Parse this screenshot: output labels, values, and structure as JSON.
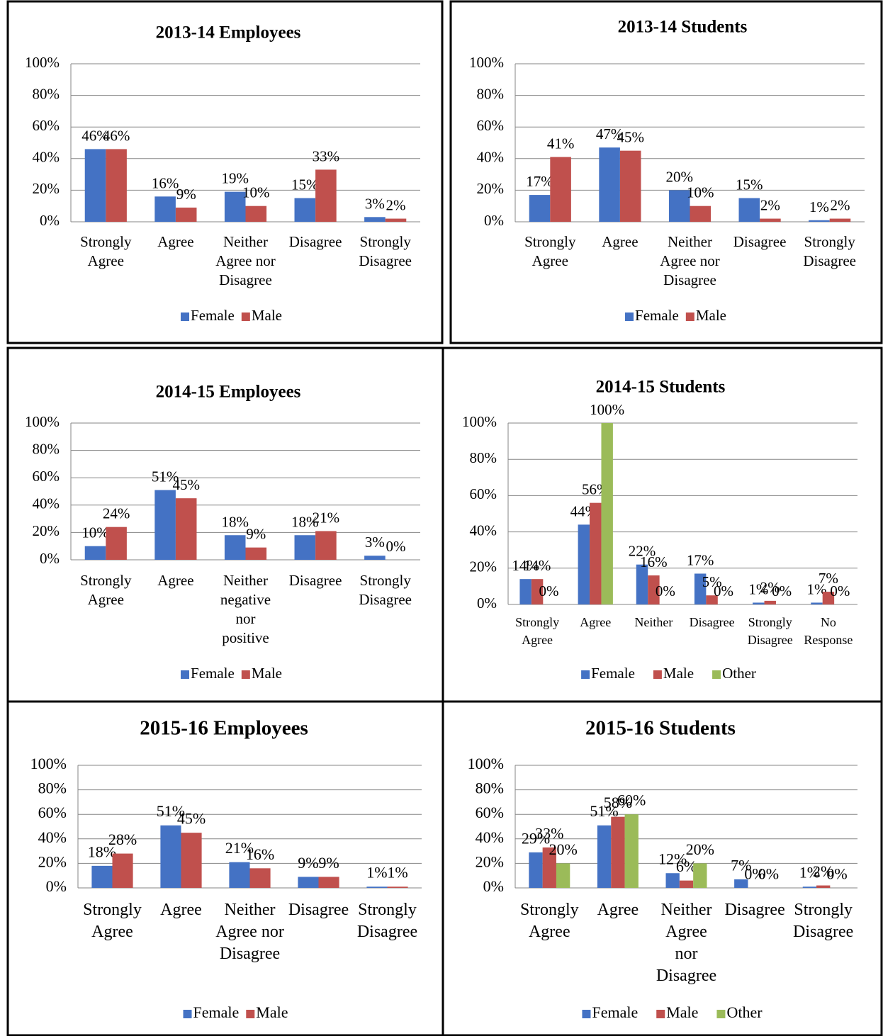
{
  "chart_data": [
    {
      "type": "bar",
      "title": "2013-14 Employees",
      "categories": [
        "Strongly Agree",
        "Agree",
        "Neither Agree nor Disagree",
        "Disagree",
        "Strongly Disagree"
      ],
      "series": [
        {
          "name": "Female",
          "color": "#4472c4",
          "values": [
            46,
            16,
            19,
            15,
            3
          ],
          "value_labels": [
            "46%",
            "16%",
            "19%",
            "15%",
            "3%"
          ]
        },
        {
          "name": "Male",
          "color": "#c0504d",
          "values": [
            46,
            9,
            10,
            33,
            2
          ],
          "value_labels": [
            "46%",
            "9%",
            "10%",
            "33%",
            "2%"
          ]
        }
      ],
      "ylim": [
        0,
        100
      ],
      "yticks": [
        {
          "value": 0,
          "label": "0%"
        },
        {
          "value": 20,
          "label": "20%"
        },
        {
          "value": 40,
          "label": "40%"
        },
        {
          "value": 60,
          "label": "60%"
        },
        {
          "value": 80,
          "label": "80%"
        },
        {
          "value": 100,
          "label": "100%"
        }
      ],
      "grid": true,
      "legend": "bottom"
    },
    {
      "type": "bar",
      "title": "2013-14 Students",
      "categories": [
        "Strongly Agree",
        "Agree",
        "Neither Agree nor Disagree",
        "Disagree",
        "Strongly Disagree"
      ],
      "series": [
        {
          "name": "Female",
          "color": "#4472c4",
          "values": [
            17,
            47,
            20,
            15,
            1
          ],
          "value_labels": [
            "17%",
            "47%",
            "20%",
            "15%",
            "1%"
          ]
        },
        {
          "name": "Male",
          "color": "#c0504d",
          "values": [
            41,
            45,
            10,
            2,
            2
          ],
          "value_labels": [
            "41%",
            "45%",
            "10%",
            "2%",
            "2%"
          ]
        }
      ],
      "ylim": [
        0,
        100
      ],
      "yticks": [
        {
          "value": 0,
          "label": "0%"
        },
        {
          "value": 20,
          "label": "20%"
        },
        {
          "value": 40,
          "label": "40%"
        },
        {
          "value": 60,
          "label": "60%"
        },
        {
          "value": 80,
          "label": "80%"
        },
        {
          "value": 100,
          "label": "100%"
        }
      ],
      "grid": true,
      "legend": "bottom"
    },
    {
      "type": "bar",
      "title": "2014-15 Employees",
      "categories": [
        "Strongly Agree",
        "Agree",
        "Neither negative nor positive",
        "Disagree",
        "Strongly Disagree"
      ],
      "series": [
        {
          "name": "Female",
          "color": "#4472c4",
          "values": [
            10,
            51,
            18,
            18,
            3
          ],
          "value_labels": [
            "10%",
            "51%",
            "18%",
            "18%",
            "3%"
          ]
        },
        {
          "name": "Male",
          "color": "#c0504d",
          "values": [
            24,
            45,
            9,
            21,
            0
          ],
          "value_labels": [
            "24%",
            "45%",
            "9%",
            "21%",
            "0%"
          ]
        }
      ],
      "ylim": [
        0,
        100
      ],
      "yticks": [
        {
          "value": 0,
          "label": "0%"
        },
        {
          "value": 20,
          "label": "20%"
        },
        {
          "value": 40,
          "label": "40%"
        },
        {
          "value": 60,
          "label": "60%"
        },
        {
          "value": 80,
          "label": "80%"
        },
        {
          "value": 100,
          "label": "100%"
        }
      ],
      "grid": true,
      "legend": "bottom"
    },
    {
      "type": "bar",
      "title": "2014-15 Students",
      "categories": [
        "Strongly Agree",
        "Agree",
        "Neither",
        "Disagree",
        "Strongly Disagree",
        "No Response"
      ],
      "series": [
        {
          "name": "Female",
          "color": "#4472c4",
          "values": [
            14,
            44,
            22,
            17,
            1,
            1
          ],
          "value_labels": [
            "14%",
            "44%",
            "22%",
            "17%",
            "1%",
            "1%"
          ]
        },
        {
          "name": "Male",
          "color": "#c0504d",
          "values": [
            14,
            56,
            16,
            5,
            2,
            7
          ],
          "value_labels": [
            "14%",
            "56%",
            "16%",
            "5%",
            "2%",
            "7%"
          ]
        },
        {
          "name": "Other",
          "color": "#9bbb59",
          "values": [
            0,
            100,
            0,
            0,
            0,
            0
          ],
          "value_labels": [
            "0%",
            "100%",
            "0%",
            "0%",
            "0%",
            "0%"
          ]
        }
      ],
      "ylim": [
        0,
        100
      ],
      "yticks": [
        {
          "value": 0,
          "label": "0%"
        },
        {
          "value": 20,
          "label": "20%"
        },
        {
          "value": 40,
          "label": "40%"
        },
        {
          "value": 60,
          "label": "60%"
        },
        {
          "value": 80,
          "label": "80%"
        },
        {
          "value": 100,
          "label": "100%"
        }
      ],
      "grid": true,
      "legend": "bottom"
    },
    {
      "type": "bar",
      "title": "2015-16 Employees",
      "categories": [
        "Strongly Agree",
        "Agree",
        "Neither Agree nor Disagree",
        "Disagree",
        "Strongly Disagree"
      ],
      "series": [
        {
          "name": "Female",
          "color": "#4472c4",
          "values": [
            18,
            51,
            21,
            9,
            1
          ],
          "value_labels": [
            "18%",
            "51%",
            "21%",
            "9%",
            "1%"
          ]
        },
        {
          "name": "Male",
          "color": "#c0504d",
          "values": [
            28,
            45,
            16,
            9,
            1
          ],
          "value_labels": [
            "28%",
            "45%",
            "16%",
            "9%",
            "1%"
          ]
        }
      ],
      "ylim": [
        0,
        100
      ],
      "yticks": [
        {
          "value": 0,
          "label": "0%"
        },
        {
          "value": 20,
          "label": "20%"
        },
        {
          "value": 40,
          "label": "40%"
        },
        {
          "value": 60,
          "label": "60%"
        },
        {
          "value": 80,
          "label": "80%"
        },
        {
          "value": 100,
          "label": "100%"
        }
      ],
      "grid": true,
      "legend": "bottom"
    },
    {
      "type": "bar",
      "title": "2015-16 Students",
      "categories": [
        "Strongly Agree",
        "Agree",
        "Neither Agree nor Disagree",
        "Disagree",
        "Strongly Disagree"
      ],
      "series": [
        {
          "name": "Female",
          "color": "#4472c4",
          "values": [
            29,
            51,
            12,
            7,
            1
          ],
          "value_labels": [
            "29%",
            "51%",
            "12%",
            "7%",
            "1%"
          ]
        },
        {
          "name": "Male",
          "color": "#c0504d",
          "values": [
            33,
            58,
            6,
            0,
            2
          ],
          "value_labels": [
            "33%",
            "58%",
            "6%",
            "0%",
            "2%"
          ]
        },
        {
          "name": "Other",
          "color": "#9bbb59",
          "values": [
            20,
            60,
            20,
            0,
            0
          ],
          "value_labels": [
            "20%",
            "60%",
            "20%",
            "0%",
            "0%"
          ]
        }
      ],
      "ylim": [
        0,
        100
      ],
      "yticks": [
        {
          "value": 0,
          "label": "0%"
        },
        {
          "value": 20,
          "label": "20%"
        },
        {
          "value": 40,
          "label": "40%"
        },
        {
          "value": 60,
          "label": "60%"
        },
        {
          "value": 80,
          "label": "80%"
        },
        {
          "value": 100,
          "label": "100%"
        }
      ],
      "grid": true,
      "legend": "bottom"
    }
  ]
}
